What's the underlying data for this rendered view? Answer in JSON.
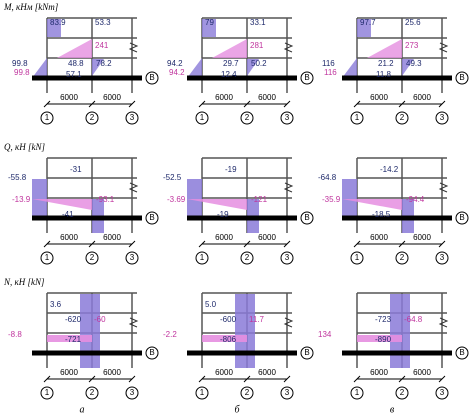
{
  "rows": [
    {
      "title": "M, кНм [kNm]",
      "panels": [
        [
          "83.9",
          "53.3",
          "241",
          "99.8",
          "99.8",
          "48.8",
          "78.2",
          "57.1"
        ],
        [
          "79",
          "33.1",
          "281",
          "94.2",
          "94.2",
          "29.7",
          "50.2",
          "12.4"
        ],
        [
          "97.7",
          "25.6",
          "273",
          "116",
          "116",
          "21.2",
          "49.3",
          "11.8"
        ]
      ]
    },
    {
      "title": "Q, кН [kN]",
      "panels": [
        [
          "-55.8",
          "-31",
          "-13.9",
          "-41",
          "-93.1"
        ],
        [
          "-52.5",
          "-19",
          "-3.69",
          "-19",
          "-121"
        ],
        [
          "-64.8",
          "-14.2",
          "-35.9",
          "-18.5",
          "-94.4"
        ]
      ]
    },
    {
      "title": "N, кН [kN]",
      "panels": [
        [
          "-620",
          "-60",
          "-8.8",
          "-721",
          "3.6"
        ],
        [
          "-600",
          "11.7",
          "-2.2",
          "-806",
          "5.0"
        ],
        [
          "-723",
          "-64.8",
          "134",
          "-890"
        ]
      ]
    }
  ],
  "axes": {
    "dimension": "6000",
    "numbers": [
      "1",
      "2",
      "3"
    ],
    "row_axis": "В"
  },
  "columns": [
    "а",
    "б",
    "в"
  ]
}
